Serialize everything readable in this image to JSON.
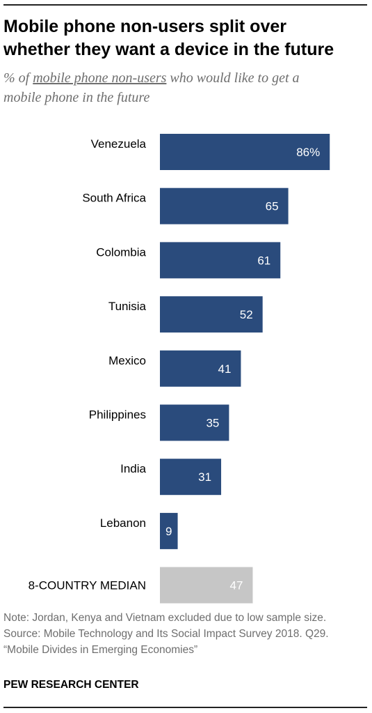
{
  "title_lines": [
    "Mobile phone non-users split over",
    "whether they want a device in the future"
  ],
  "subtitle": {
    "prefix": "% of ",
    "underlined": "mobile phone non-users",
    "suffix_line1": " who would like to get a",
    "line2": "mobile phone in the future"
  },
  "chart_data": {
    "type": "bar",
    "orientation": "horizontal",
    "categories": [
      "Venezuela",
      "South Africa",
      "Colombia",
      "Tunisia",
      "Mexico",
      "Philippines",
      "India",
      "Lebanon",
      "8-COUNTRY MEDIAN"
    ],
    "values": [
      86,
      65,
      61,
      52,
      41,
      35,
      31,
      9,
      47
    ],
    "value_labels": [
      "86%",
      "65",
      "61",
      "52",
      "41",
      "35",
      "31",
      "9",
      "47"
    ],
    "colors": {
      "bar": "#2a4b7c",
      "median_bar": "#c6c6c6",
      "value_text": "#ffffff"
    },
    "median_index": 8,
    "xlim": [
      0,
      100
    ]
  },
  "notes": [
    "Note: Jordan, Kenya and Vietnam excluded due to low sample size.",
    "Source: Mobile Technology and Its Social Impact Survey 2018. Q29.",
    "“Mobile Divides in Emerging Economies”"
  ],
  "brand": "PEW RESEARCH CENTER"
}
